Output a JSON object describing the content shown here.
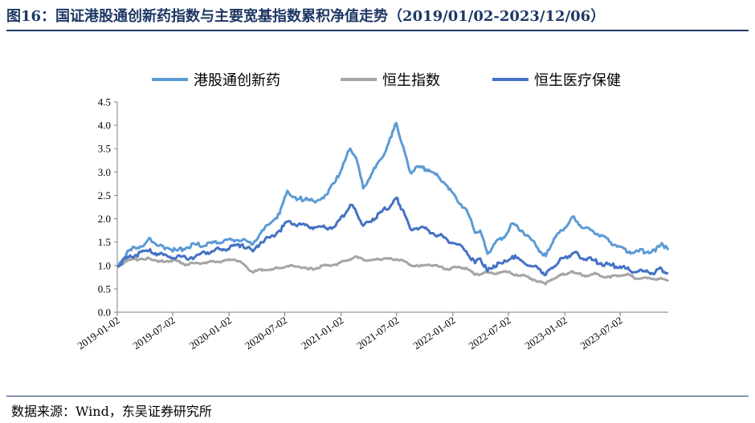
{
  "title": "图16：国证港股通创新药指数与主要宽基指数累积净值走势（2019/01/02-2023/12/06）",
  "source": "数据来源：Wind，东吴证券研究所",
  "colors": {
    "title": "#1f3864",
    "series_1": "#5b9bd5",
    "series_2": "#a5a5a5",
    "series_3": "#4472c4"
  },
  "chart_data": {
    "type": "line",
    "legend_position": "top",
    "grid": false,
    "ylim": [
      0,
      4.5
    ],
    "y_ticks": [
      "0.0",
      "0.5",
      "1.0",
      "1.5",
      "2.0",
      "2.5",
      "3.0",
      "3.5",
      "4.0",
      "4.5"
    ],
    "x_ticks": [
      "2019-01-02",
      "2019-07-02",
      "2020-01-02",
      "2020-07-02",
      "2021-01-02",
      "2021-07-02",
      "2022-01-02",
      "2022-07-02",
      "2023-01-02",
      "2023-07-02"
    ],
    "x_range": [
      "2019-01-02",
      "2023-12-06"
    ],
    "series": [
      {
        "name": "港股通创新药",
        "color": "#5b9bd5",
        "points": [
          [
            "2019-01-02",
            1.0
          ],
          [
            "2019-02-01",
            1.25
          ],
          [
            "2019-03-01",
            1.38
          ],
          [
            "2019-04-01",
            1.45
          ],
          [
            "2019-04-20",
            1.58
          ],
          [
            "2019-05-15",
            1.42
          ],
          [
            "2019-06-15",
            1.38
          ],
          [
            "2019-07-15",
            1.32
          ],
          [
            "2019-08-15",
            1.38
          ],
          [
            "2019-09-15",
            1.45
          ],
          [
            "2019-10-15",
            1.42
          ],
          [
            "2019-11-15",
            1.5
          ],
          [
            "2019-12-15",
            1.52
          ],
          [
            "2020-01-15",
            1.55
          ],
          [
            "2020-02-15",
            1.55
          ],
          [
            "2020-03-15",
            1.45
          ],
          [
            "2020-04-15",
            1.7
          ],
          [
            "2020-05-15",
            1.9
          ],
          [
            "2020-06-15",
            2.1
          ],
          [
            "2020-07-10",
            2.6
          ],
          [
            "2020-08-10",
            2.4
          ],
          [
            "2020-09-10",
            2.45
          ],
          [
            "2020-10-10",
            2.35
          ],
          [
            "2020-11-10",
            2.5
          ],
          [
            "2020-12-15",
            2.8
          ],
          [
            "2021-01-10",
            3.2
          ],
          [
            "2021-02-01",
            3.5
          ],
          [
            "2021-02-20",
            3.3
          ],
          [
            "2021-03-15",
            2.65
          ],
          [
            "2021-04-15",
            3.0
          ],
          [
            "2021-05-15",
            3.3
          ],
          [
            "2021-06-15",
            3.75
          ],
          [
            "2021-07-01",
            4.05
          ],
          [
            "2021-07-20",
            3.6
          ],
          [
            "2021-08-15",
            3.0
          ],
          [
            "2021-09-15",
            3.1
          ],
          [
            "2021-10-15",
            3.05
          ],
          [
            "2021-11-15",
            2.9
          ],
          [
            "2021-12-15",
            2.7
          ],
          [
            "2022-01-15",
            2.4
          ],
          [
            "2022-02-15",
            2.2
          ],
          [
            "2022-03-15",
            1.7
          ],
          [
            "2022-04-01",
            1.75
          ],
          [
            "2022-04-25",
            1.25
          ],
          [
            "2022-05-15",
            1.45
          ],
          [
            "2022-06-15",
            1.6
          ],
          [
            "2022-07-15",
            1.9
          ],
          [
            "2022-08-15",
            1.75
          ],
          [
            "2022-09-15",
            1.55
          ],
          [
            "2022-10-15",
            1.3
          ],
          [
            "2022-11-01",
            1.2
          ],
          [
            "2022-11-20",
            1.45
          ],
          [
            "2022-12-15",
            1.7
          ],
          [
            "2023-01-15",
            1.9
          ],
          [
            "2023-02-01",
            2.05
          ],
          [
            "2023-03-01",
            1.8
          ],
          [
            "2023-04-01",
            1.75
          ],
          [
            "2023-05-01",
            1.65
          ],
          [
            "2023-06-01",
            1.5
          ],
          [
            "2023-07-01",
            1.4
          ],
          [
            "2023-08-01",
            1.3
          ],
          [
            "2023-09-01",
            1.3
          ],
          [
            "2023-10-01",
            1.3
          ],
          [
            "2023-10-25",
            1.3
          ],
          [
            "2023-11-15",
            1.48
          ],
          [
            "2023-12-06",
            1.33
          ]
        ]
      },
      {
        "name": "恒生指数",
        "color": "#a5a5a5",
        "points": [
          [
            "2019-01-02",
            1.0
          ],
          [
            "2019-02-15",
            1.12
          ],
          [
            "2019-04-15",
            1.16
          ],
          [
            "2019-05-15",
            1.08
          ],
          [
            "2019-06-15",
            1.1
          ],
          [
            "2019-07-15",
            1.1
          ],
          [
            "2019-08-15",
            1.02
          ],
          [
            "2019-09-15",
            1.05
          ],
          [
            "2019-10-15",
            1.06
          ],
          [
            "2019-11-15",
            1.08
          ],
          [
            "2020-01-15",
            1.12
          ],
          [
            "2020-02-15",
            1.05
          ],
          [
            "2020-03-20",
            0.85
          ],
          [
            "2020-04-15",
            0.92
          ],
          [
            "2020-05-15",
            0.9
          ],
          [
            "2020-06-15",
            0.95
          ],
          [
            "2020-07-15",
            0.98
          ],
          [
            "2020-08-15",
            0.98
          ],
          [
            "2020-09-15",
            0.92
          ],
          [
            "2020-10-15",
            0.95
          ],
          [
            "2020-11-15",
            1.0
          ],
          [
            "2020-12-15",
            1.02
          ],
          [
            "2021-01-15",
            1.1
          ],
          [
            "2021-02-15",
            1.18
          ],
          [
            "2021-03-15",
            1.12
          ],
          [
            "2021-05-15",
            1.12
          ],
          [
            "2021-06-15",
            1.15
          ],
          [
            "2021-07-15",
            1.12
          ],
          [
            "2021-08-15",
            1.02
          ],
          [
            "2021-09-15",
            0.98
          ],
          [
            "2021-10-15",
            1.02
          ],
          [
            "2021-11-15",
            0.98
          ],
          [
            "2021-12-15",
            0.93
          ],
          [
            "2022-01-15",
            0.96
          ],
          [
            "2022-02-15",
            0.95
          ],
          [
            "2022-03-15",
            0.8
          ],
          [
            "2022-04-15",
            0.85
          ],
          [
            "2022-05-15",
            0.82
          ],
          [
            "2022-06-15",
            0.87
          ],
          [
            "2022-07-15",
            0.82
          ],
          [
            "2022-08-15",
            0.8
          ],
          [
            "2022-09-15",
            0.72
          ],
          [
            "2022-10-31",
            0.6
          ],
          [
            "2022-11-20",
            0.7
          ],
          [
            "2022-12-15",
            0.78
          ],
          [
            "2023-01-27",
            0.88
          ],
          [
            "2023-02-15",
            0.82
          ],
          [
            "2023-03-15",
            0.78
          ],
          [
            "2023-04-15",
            0.82
          ],
          [
            "2023-05-31",
            0.74
          ],
          [
            "2023-06-15",
            0.79
          ],
          [
            "2023-07-31",
            0.8
          ],
          [
            "2023-08-15",
            0.74
          ],
          [
            "2023-09-15",
            0.73
          ],
          [
            "2023-10-15",
            0.71
          ],
          [
            "2023-11-15",
            0.72
          ],
          [
            "2023-12-06",
            0.66
          ]
        ]
      },
      {
        "name": "恒生医疗保健",
        "color": "#4472c4",
        "points": [
          [
            "2019-01-02",
            0.97
          ],
          [
            "2019-02-01",
            1.15
          ],
          [
            "2019-03-01",
            1.22
          ],
          [
            "2019-04-15",
            1.32
          ],
          [
            "2019-05-15",
            1.25
          ],
          [
            "2019-06-15",
            1.2
          ],
          [
            "2019-07-15",
            1.18
          ],
          [
            "2019-08-15",
            1.15
          ],
          [
            "2019-09-15",
            1.2
          ],
          [
            "2019-10-15",
            1.28
          ],
          [
            "2019-11-15",
            1.32
          ],
          [
            "2019-12-15",
            1.35
          ],
          [
            "2020-01-15",
            1.42
          ],
          [
            "2020-02-15",
            1.45
          ],
          [
            "2020-03-20",
            1.3
          ],
          [
            "2020-04-15",
            1.5
          ],
          [
            "2020-05-15",
            1.6
          ],
          [
            "2020-06-15",
            1.75
          ],
          [
            "2020-07-15",
            1.95
          ],
          [
            "2020-08-15",
            1.88
          ],
          [
            "2020-09-15",
            1.85
          ],
          [
            "2020-10-15",
            1.82
          ],
          [
            "2020-11-15",
            1.8
          ],
          [
            "2020-12-15",
            1.85
          ],
          [
            "2021-01-15",
            2.1
          ],
          [
            "2021-02-01",
            2.3
          ],
          [
            "2021-02-20",
            2.15
          ],
          [
            "2021-03-15",
            1.85
          ],
          [
            "2021-04-15",
            2.0
          ],
          [
            "2021-05-15",
            2.15
          ],
          [
            "2021-06-15",
            2.3
          ],
          [
            "2021-07-01",
            2.45
          ],
          [
            "2021-07-20",
            2.2
          ],
          [
            "2021-08-15",
            1.8
          ],
          [
            "2021-09-15",
            1.8
          ],
          [
            "2021-10-15",
            1.75
          ],
          [
            "2021-11-15",
            1.65
          ],
          [
            "2021-12-15",
            1.55
          ],
          [
            "2022-01-15",
            1.45
          ],
          [
            "2022-02-15",
            1.3
          ],
          [
            "2022-03-15",
            1.05
          ],
          [
            "2022-04-01",
            1.15
          ],
          [
            "2022-04-25",
            0.88
          ],
          [
            "2022-05-15",
            1.0
          ],
          [
            "2022-06-15",
            1.05
          ],
          [
            "2022-07-15",
            1.2
          ],
          [
            "2022-08-15",
            1.1
          ],
          [
            "2022-09-15",
            0.98
          ],
          [
            "2022-10-15",
            0.9
          ],
          [
            "2022-11-01",
            0.8
          ],
          [
            "2022-11-20",
            0.95
          ],
          [
            "2022-12-15",
            1.1
          ],
          [
            "2023-01-15",
            1.2
          ],
          [
            "2023-02-01",
            1.28
          ],
          [
            "2023-03-01",
            1.15
          ],
          [
            "2023-04-01",
            1.12
          ],
          [
            "2023-05-01",
            1.05
          ],
          [
            "2023-06-01",
            1.0
          ],
          [
            "2023-07-01",
            0.98
          ],
          [
            "2023-08-01",
            0.9
          ],
          [
            "2023-09-01",
            0.88
          ],
          [
            "2023-10-01",
            0.86
          ],
          [
            "2023-10-25",
            0.86
          ],
          [
            "2023-11-15",
            0.92
          ],
          [
            "2023-12-06",
            0.83
          ]
        ]
      }
    ]
  }
}
